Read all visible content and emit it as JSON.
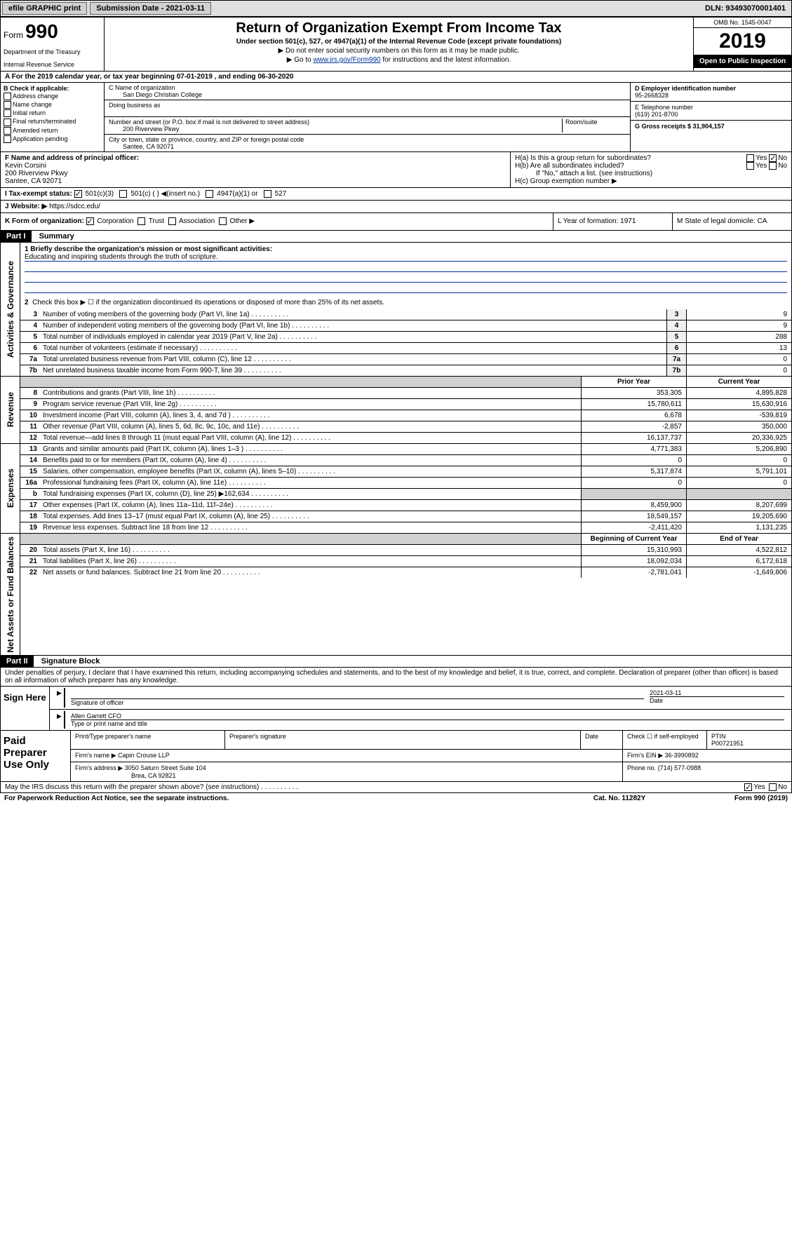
{
  "topbar": {
    "efile_label": "efile GRAPHIC print",
    "submission_date_label": "Submission Date - 2021-03-11",
    "dln_label": "DLN: 93493070001401"
  },
  "header": {
    "form_prefix": "Form",
    "form_number": "990",
    "dept_line1": "Department of the Treasury",
    "dept_line2": "Internal Revenue Service",
    "title": "Return of Organization Exempt From Income Tax",
    "under_section": "Under section 501(c), 527, or 4947(a)(1) of the Internal Revenue Code (except private foundations)",
    "no_ssn": "▶ Do not enter social security numbers on this form as it may be made public.",
    "goto_prefix": "▶ Go to ",
    "goto_link": "www.irs.gov/Form990",
    "goto_suffix": " for instructions and the latest information.",
    "omb": "OMB No. 1545-0047",
    "year": "2019",
    "open_public": "Open to Public Inspection"
  },
  "row_a": "A  For the 2019 calendar year, or tax year beginning 07-01-2019     , and ending 06-30-2020",
  "section_b": {
    "check_label": "B Check if applicable:",
    "address_change": "Address change",
    "name_change": "Name change",
    "initial_return": "Initial return",
    "final_return": "Final return/terminated",
    "amended_return": "Amended return",
    "app_pending": "Application pending",
    "c_name_label": "C Name of organization",
    "org_name": "San Diego Christian College",
    "dba_label": "Doing business as",
    "addr_label": "Number and street (or P.O. box if mail is not delivered to street address)",
    "room_label": "Room/suite",
    "addr": "200 Riverview Pkwy",
    "city_label": "City or town, state or province, country, and ZIP or foreign postal code",
    "city": "Santee, CA  92071",
    "d_label": "D Employer identification number",
    "ein": "95-2668328",
    "e_label": "E Telephone number",
    "phone": "(619) 201-8700",
    "g_label": "G Gross receipts $ 31,904,157"
  },
  "fh": {
    "f_label": "F  Name and address of principal officer:",
    "officer_name": "Kevin Corsini",
    "officer_addr1": "200 Riverview Pkwy",
    "officer_addr2": "Santee, CA  92071",
    "ha_label": "H(a)  Is this a group return for subordinates?",
    "hb_label": "H(b)  Are all subordinates included?",
    "hb_note": "If \"No,\" attach a list. (see instructions)",
    "hc_label": "H(c)  Group exemption number ▶",
    "yes": "Yes",
    "no": "No"
  },
  "tax_status": {
    "label": "I    Tax-exempt status:",
    "opt1": "501(c)(3)",
    "opt2": "501(c) (  ) ◀(insert no.)",
    "opt3": "4947(a)(1) or",
    "opt4": "527"
  },
  "website": {
    "label": "J   Website: ▶",
    "url": "https://sdcc.edu/"
  },
  "row_klm": {
    "k_label": "K Form of organization:",
    "corp": "Corporation",
    "trust": "Trust",
    "assoc": "Association",
    "other": "Other ▶",
    "l_label": "L Year of formation: 1971",
    "m_label": "M State of legal domicile: CA"
  },
  "part1": {
    "header": "Part I",
    "title": "Summary",
    "vert_ag": "Activities & Governance",
    "vert_rev": "Revenue",
    "vert_exp": "Expenses",
    "vert_na": "Net Assets or Fund Balances",
    "q1_label": "1  Briefly describe the organization's mission or most significant activities:",
    "q1_text": "Educating and inspiring students through the truth of scripture.",
    "q2": "Check this box ▶ ☐  if the organization discontinued its operations or disposed of more than 25% of its net assets.",
    "lines": {
      "3": {
        "text": "Number of voting members of the governing body (Part VI, line 1a)",
        "val": "9"
      },
      "4": {
        "text": "Number of independent voting members of the governing body (Part VI, line 1b)",
        "val": "9"
      },
      "5": {
        "text": "Total number of individuals employed in calendar year 2019 (Part V, line 2a)",
        "val": "288"
      },
      "6": {
        "text": "Total number of volunteers (estimate if necessary)",
        "val": "13"
      },
      "7a": {
        "text": "Total unrelated business revenue from Part VIII, column (C), line 12",
        "val": "0"
      },
      "7b": {
        "text": "Net unrelated business taxable income from Form 990-T, line 39",
        "val": "0"
      }
    },
    "prior_year": "Prior Year",
    "current_year": "Current Year",
    "beg_year": "Beginning of Current Year",
    "end_year": "End of Year",
    "rev_rows": [
      {
        "num": "8",
        "text": "Contributions and grants (Part VIII, line 1h)",
        "c1": "353,305",
        "c2": "4,895,828"
      },
      {
        "num": "9",
        "text": "Program service revenue (Part VIII, line 2g)",
        "c1": "15,780,611",
        "c2": "15,630,916"
      },
      {
        "num": "10",
        "text": "Investment income (Part VIII, column (A), lines 3, 4, and 7d )",
        "c1": "6,678",
        "c2": "-539,819"
      },
      {
        "num": "11",
        "text": "Other revenue (Part VIII, column (A), lines 5, 6d, 8c, 9c, 10c, and 11e)",
        "c1": "-2,857",
        "c2": "350,000"
      },
      {
        "num": "12",
        "text": "Total revenue—add lines 8 through 11 (must equal Part VIII, column (A), line 12)",
        "c1": "16,137,737",
        "c2": "20,336,925"
      }
    ],
    "exp_rows": [
      {
        "num": "13",
        "text": "Grants and similar amounts paid (Part IX, column (A), lines 1–3 )",
        "c1": "4,771,383",
        "c2": "5,206,890"
      },
      {
        "num": "14",
        "text": "Benefits paid to or for members (Part IX, column (A), line 4)",
        "c1": "0",
        "c2": "0"
      },
      {
        "num": "15",
        "text": "Salaries, other compensation, employee benefits (Part IX, column (A), lines 5–10)",
        "c1": "5,317,874",
        "c2": "5,791,101"
      },
      {
        "num": "16a",
        "text": "Professional fundraising fees (Part IX, column (A), line 11e)",
        "c1": "0",
        "c2": "0"
      },
      {
        "num": "b",
        "text": "Total fundraising expenses (Part IX, column (D), line 25) ▶162,634",
        "c1": "",
        "c2": "",
        "shaded": true
      },
      {
        "num": "17",
        "text": "Other expenses (Part IX, column (A), lines 11a–11d, 11f–24e)",
        "c1": "8,459,900",
        "c2": "8,207,699"
      },
      {
        "num": "18",
        "text": "Total expenses. Add lines 13–17 (must equal Part IX, column (A), line 25)",
        "c1": "18,549,157",
        "c2": "19,205,690"
      },
      {
        "num": "19",
        "text": "Revenue less expenses. Subtract line 18 from line 12",
        "c1": "-2,411,420",
        "c2": "1,131,235"
      }
    ],
    "na_rows": [
      {
        "num": "20",
        "text": "Total assets (Part X, line 16)",
        "c1": "15,310,993",
        "c2": "4,522,812"
      },
      {
        "num": "21",
        "text": "Total liabilities (Part X, line 26)",
        "c1": "18,092,034",
        "c2": "6,172,618"
      },
      {
        "num": "22",
        "text": "Net assets or fund balances. Subtract line 21 from line 20",
        "c1": "-2,781,041",
        "c2": "-1,649,806"
      }
    ]
  },
  "part2": {
    "header": "Part II",
    "title": "Signature Block",
    "perjury": "Under penalties of perjury, I declare that I have examined this return, including accompanying schedules and statements, and to the best of my knowledge and belief, it is true, correct, and complete. Declaration of preparer (other than officer) is based on all information of which preparer has any knowledge.",
    "sign_here": "Sign Here",
    "sig_officer": "Signature of officer",
    "date_label": "Date",
    "sig_date": "2021-03-11",
    "officer_name": "Allen Garrett  CFO",
    "type_name": "Type or print name and title",
    "paid_prep": "Paid Preparer Use Only",
    "print_name_label": "Print/Type preparer's name",
    "prep_sig_label": "Preparer's signature",
    "check_self": "Check ☐ if self-employed",
    "ptin_label": "PTIN",
    "ptin": "P00721951",
    "firm_name_label": "Firm's name    ▶",
    "firm_name": "Capin Crouse LLP",
    "firm_ein_label": "Firm's EIN ▶",
    "firm_ein": "36-3990892",
    "firm_addr_label": "Firm's address ▶",
    "firm_addr1": "3050 Saturn Street Suite 104",
    "firm_addr2": "Brea, CA  92821",
    "phone_label": "Phone no.",
    "phone": "(714) 577-0988",
    "discuss": "May the IRS discuss this return with the preparer shown above? (see instructions)",
    "paperwork": "For Paperwork Reduction Act Notice, see the separate instructions.",
    "cat": "Cat. No. 11282Y",
    "form_label": "Form 990 (2019)"
  }
}
